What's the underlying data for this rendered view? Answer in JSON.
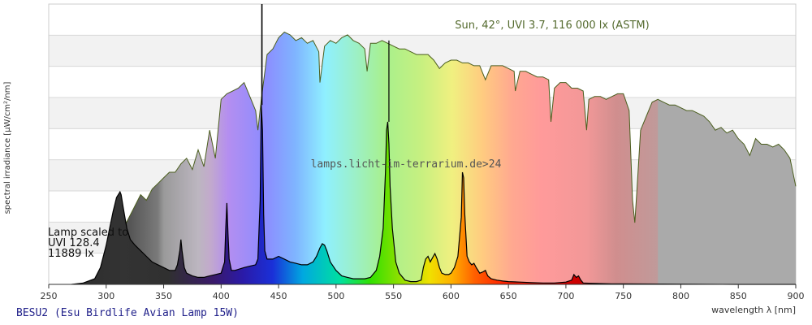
{
  "chart_data": {
    "type": "area",
    "title": "",
    "xlabel": "wavelength λ [nm]",
    "ylabel": "spectral irradiance [µW/cm²/nm]",
    "xlim": [
      250,
      900
    ],
    "ylim": [
      0,
      1
    ],
    "x_ticks": [
      "250",
      "300",
      "350",
      "400",
      "450",
      "500",
      "550",
      "600",
      "650",
      "700",
      "750",
      "800",
      "850",
      "900"
    ],
    "grid": "horizontal bands",
    "annotations": {
      "sun": "Sun, 42°, UVI 3.7, 116 000 lx (ASTM)",
      "watermark": "lamps.licht-im-terrarium.de>24",
      "lamp_scaled": [
        "Lamp scaled to",
        "UVI 128.4",
        "11889 lx"
      ],
      "lamp_name": "BESU2 (Esu Birdlife Avian Lamp 15W)"
    },
    "series": [
      {
        "name": "Sun, 42°, UVI 3.7, 116 000 lx (ASTM)",
        "color": "#4b5e1e",
        "x": [
          295,
          300,
          305,
          310,
          315,
          320,
          325,
          330,
          335,
          340,
          345,
          350,
          355,
          360,
          365,
          370,
          375,
          380,
          385,
          390,
          395,
          400,
          405,
          410,
          415,
          420,
          425,
          430,
          432,
          435,
          440,
          445,
          450,
          455,
          460,
          465,
          470,
          475,
          480,
          485,
          486,
          490,
          495,
          500,
          505,
          510,
          515,
          520,
          525,
          527,
          530,
          535,
          540,
          545,
          550,
          555,
          560,
          565,
          570,
          575,
          580,
          585,
          590,
          595,
          600,
          605,
          610,
          615,
          620,
          625,
          630,
          635,
          640,
          645,
          650,
          655,
          656,
          660,
          665,
          670,
          675,
          680,
          685,
          687,
          690,
          695,
          700,
          705,
          710,
          715,
          718,
          720,
          725,
          730,
          735,
          740,
          745,
          750,
          755,
          758,
          760,
          762,
          765,
          770,
          775,
          780,
          785,
          790,
          795,
          800,
          805,
          810,
          815,
          820,
          825,
          830,
          835,
          840,
          845,
          850,
          855,
          860,
          865,
          870,
          875,
          880,
          885,
          890,
          895,
          900
        ],
        "values": [
          0.0,
          0.02,
          0.07,
          0.14,
          0.2,
          0.24,
          0.28,
          0.32,
          0.3,
          0.34,
          0.36,
          0.38,
          0.4,
          0.4,
          0.43,
          0.45,
          0.41,
          0.48,
          0.42,
          0.55,
          0.45,
          0.66,
          0.68,
          0.69,
          0.7,
          0.72,
          0.67,
          0.62,
          0.55,
          0.66,
          0.82,
          0.84,
          0.88,
          0.9,
          0.89,
          0.87,
          0.88,
          0.86,
          0.87,
          0.83,
          0.72,
          0.85,
          0.87,
          0.86,
          0.88,
          0.89,
          0.87,
          0.86,
          0.84,
          0.76,
          0.86,
          0.86,
          0.87,
          0.86,
          0.85,
          0.84,
          0.84,
          0.83,
          0.82,
          0.82,
          0.82,
          0.8,
          0.77,
          0.79,
          0.8,
          0.8,
          0.79,
          0.79,
          0.78,
          0.78,
          0.73,
          0.78,
          0.78,
          0.78,
          0.77,
          0.76,
          0.69,
          0.76,
          0.76,
          0.75,
          0.74,
          0.74,
          0.73,
          0.58,
          0.7,
          0.72,
          0.72,
          0.7,
          0.7,
          0.69,
          0.55,
          0.66,
          0.67,
          0.67,
          0.66,
          0.67,
          0.68,
          0.68,
          0.62,
          0.3,
          0.22,
          0.35,
          0.55,
          0.6,
          0.65,
          0.66,
          0.65,
          0.64,
          0.64,
          0.63,
          0.62,
          0.62,
          0.61,
          0.6,
          0.58,
          0.55,
          0.56,
          0.54,
          0.55,
          0.52,
          0.5,
          0.46,
          0.52,
          0.5,
          0.5,
          0.49,
          0.5,
          0.48,
          0.45,
          0.35
        ]
      },
      {
        "name": "BESU2 (Esu Birdlife Avian Lamp 15W)",
        "color": "#000000",
        "x": [
          270,
          280,
          290,
          295,
          300,
          303,
          306,
          309,
          312,
          313,
          315,
          318,
          321,
          325,
          330,
          335,
          340,
          345,
          350,
          355,
          360,
          362,
          364,
          365,
          366,
          368,
          370,
          375,
          380,
          385,
          390,
          395,
          400,
          403,
          404,
          405,
          406,
          407,
          409,
          412,
          420,
          425,
          430,
          432,
          434,
          435,
          436,
          437,
          438,
          440,
          445,
          450,
          455,
          460,
          465,
          470,
          475,
          480,
          483,
          486,
          488,
          490,
          492,
          495,
          500,
          505,
          510,
          515,
          520,
          525,
          530,
          535,
          538,
          541,
          543,
          544,
          545,
          546,
          547,
          549,
          552,
          555,
          560,
          565,
          570,
          574,
          576,
          578,
          580,
          582,
          584,
          586,
          588,
          590,
          592,
          595,
          598,
          600,
          603,
          606,
          609,
          610,
          611,
          612,
          614,
          616,
          618,
          620,
          622,
          625,
          628,
          630,
          632,
          635,
          640,
          645,
          650,
          660,
          670,
          680,
          690,
          700,
          705,
          707,
          709,
          711,
          713,
          715,
          720,
          730,
          740,
          750,
          800,
          850,
          900
        ],
        "values": [
          0.0,
          0.005,
          0.02,
          0.06,
          0.14,
          0.2,
          0.26,
          0.31,
          0.33,
          0.32,
          0.27,
          0.2,
          0.16,
          0.14,
          0.12,
          0.1,
          0.08,
          0.07,
          0.06,
          0.05,
          0.05,
          0.07,
          0.12,
          0.16,
          0.12,
          0.06,
          0.04,
          0.03,
          0.025,
          0.025,
          0.03,
          0.035,
          0.04,
          0.08,
          0.2,
          0.29,
          0.18,
          0.09,
          0.05,
          0.05,
          0.06,
          0.065,
          0.07,
          0.09,
          0.3,
          0.64,
          0.55,
          0.25,
          0.12,
          0.09,
          0.09,
          0.1,
          0.09,
          0.08,
          0.075,
          0.07,
          0.07,
          0.08,
          0.1,
          0.13,
          0.145,
          0.14,
          0.12,
          0.08,
          0.05,
          0.03,
          0.025,
          0.02,
          0.02,
          0.02,
          0.025,
          0.05,
          0.1,
          0.2,
          0.4,
          0.55,
          0.58,
          0.5,
          0.35,
          0.2,
          0.08,
          0.04,
          0.015,
          0.01,
          0.01,
          0.015,
          0.06,
          0.09,
          0.1,
          0.08,
          0.095,
          0.11,
          0.09,
          0.06,
          0.04,
          0.035,
          0.035,
          0.04,
          0.06,
          0.1,
          0.24,
          0.4,
          0.38,
          0.25,
          0.1,
          0.08,
          0.07,
          0.075,
          0.06,
          0.04,
          0.045,
          0.05,
          0.03,
          0.02,
          0.015,
          0.012,
          0.01,
          0.008,
          0.006,
          0.005,
          0.005,
          0.008,
          0.015,
          0.035,
          0.025,
          0.03,
          0.015,
          0.005,
          0.004,
          0.003,
          0.002,
          0.002,
          0.001,
          0.0,
          0.0
        ]
      }
    ]
  }
}
